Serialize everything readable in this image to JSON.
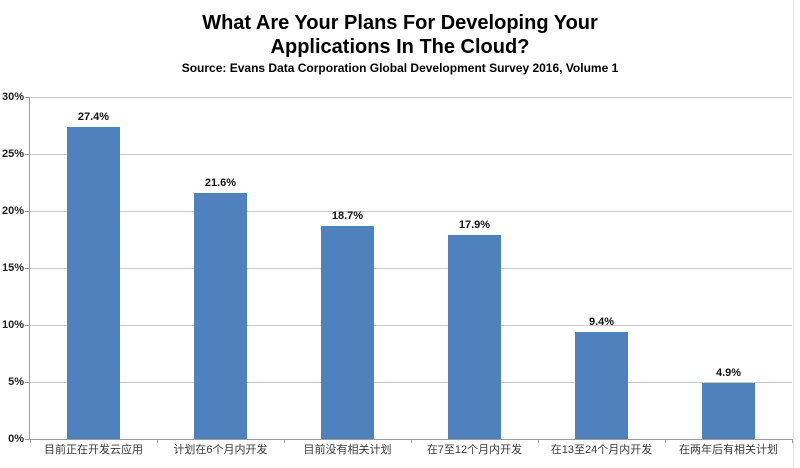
{
  "chart_data": {
    "type": "bar",
    "title": "What Are Your Plans For Developing Your Applications In The Cloud?",
    "subtitle": "Source: Evans Data Corporation Global Development Survey 2016, Volume 1",
    "categories": [
      "目前正在开发云应用",
      "计划在6个月内开发",
      "目前没有相关计划",
      "在7至12个月内开发",
      "在13至24个月内开发",
      "在两年后有相关计划"
    ],
    "values": [
      27.4,
      21.6,
      18.7,
      17.9,
      9.4,
      4.9
    ],
    "data_labels": [
      "27.4%",
      "21.6%",
      "18.7%",
      "17.9%",
      "9.4%",
      "4.9%"
    ],
    "xlabel": "",
    "ylabel": "",
    "ylim": [
      0,
      30
    ],
    "ytick_step": 5,
    "ytick_labels": [
      "0%",
      "5%",
      "10%",
      "15%",
      "20%",
      "25%",
      "30%"
    ],
    "grid": true,
    "legend": "none",
    "bar_color": "#4F81BD",
    "gridline_color": "#c9c9c9",
    "axis_color": "#9c9c9c"
  }
}
